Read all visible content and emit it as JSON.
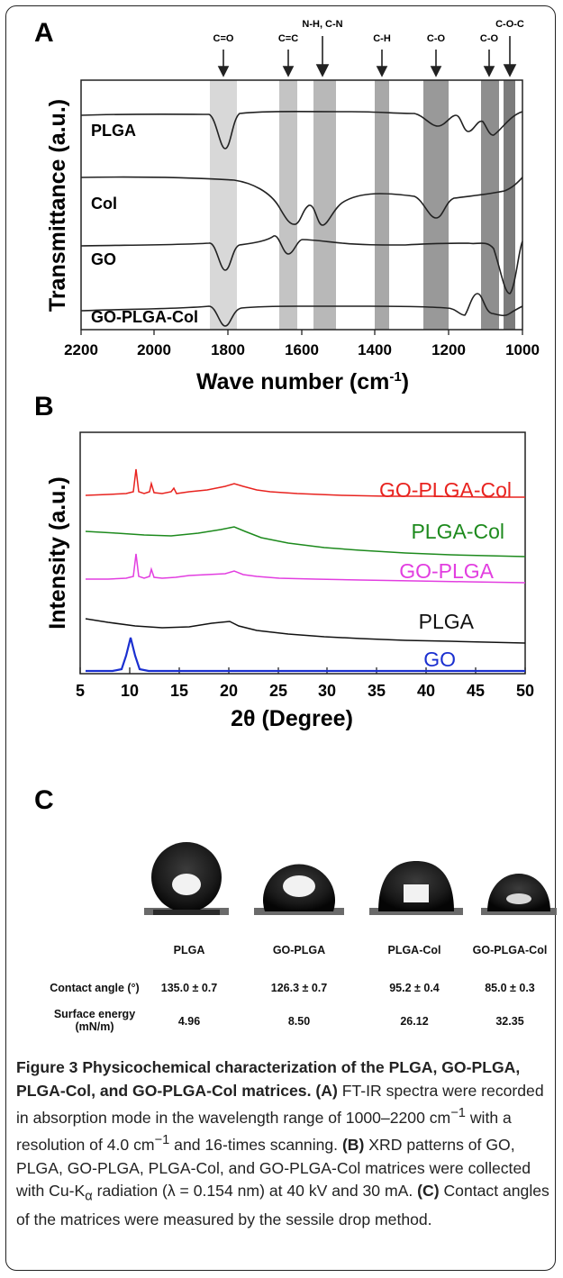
{
  "panel_a": {
    "letter": "A",
    "ylabel": "Transmittance (a.u.)",
    "xlabel_main": "Wave number (cm",
    "xlabel_sup": "-1",
    "xlabel_end": ")",
    "x_ticks": [
      "2200",
      "2000",
      "1800",
      "1600",
      "1400",
      "1200",
      "1000"
    ],
    "band_labels": [
      "C=O",
      "C=C",
      "N-H, C-N",
      "C-H",
      "C-O",
      "C-O",
      "C-O-C"
    ],
    "series_labels": [
      "PLGA",
      "Col",
      "GO",
      "GO-PLGA-Col"
    ]
  },
  "panel_b": {
    "letter": "B",
    "ylabel": "Intensity (a.u.)",
    "xlabel": "2θ (Degree)",
    "x_ticks": [
      "5",
      "10",
      "15",
      "20",
      "25",
      "30",
      "35",
      "40",
      "45",
      "50"
    ],
    "series": [
      {
        "name": "GO-PLGA-Col",
        "color": "#e8231f"
      },
      {
        "name": "PLGA-Col",
        "color": "#1d8a1d"
      },
      {
        "name": "GO-PLGA",
        "color": "#e23ee0"
      },
      {
        "name": "PLGA",
        "color": "#111111"
      },
      {
        "name": "GO",
        "color": "#1a2fd0"
      }
    ]
  },
  "panel_c": {
    "letter": "C",
    "columns": [
      "PLGA",
      "GO-PLGA",
      "PLGA-Col",
      "GO-PLGA-Col"
    ],
    "row1_label": "Contact angle (°)",
    "row1_values": [
      "135.0 ± 0.7",
      "126.3 ± 0.7",
      "95.2 ± 0.4",
      "85.0 ± 0.3"
    ],
    "row2_label_line1": "Surface energy",
    "row2_label_line2": "(mN/m)",
    "row2_values": [
      "4.96",
      "8.50",
      "26.12",
      "32.35"
    ]
  },
  "caption": {
    "title": "Figure 3 Physicochemical characterization of the PLGA, GO-PLGA, PLGA-Col, and GO-PLGA-Col matrices.",
    "a_tag": "(A)",
    "a_text_1": " FT-IR spectra were recorded in absorption mode in the wavelength range of 1000–2200 cm",
    "a_sup1": "−1",
    "a_text_2": " with a resolution of 4.0 cm",
    "a_sup2": "−1",
    "a_text_3": " and 16-times scanning.",
    "b_tag": "(B)",
    "b_text_1": " XRD patterns of GO, PLGA, GO-PLGA, PLGA-Col, and GO-PLGA-Col matrices were collected with Cu-K",
    "b_sub": "α",
    "b_text_2": " radiation (λ = 0.154 nm) at 40 kV and 30 mA.",
    "c_tag": "(C)",
    "c_text": " Contact angles of the matrices were measured by the sessile drop method."
  }
}
